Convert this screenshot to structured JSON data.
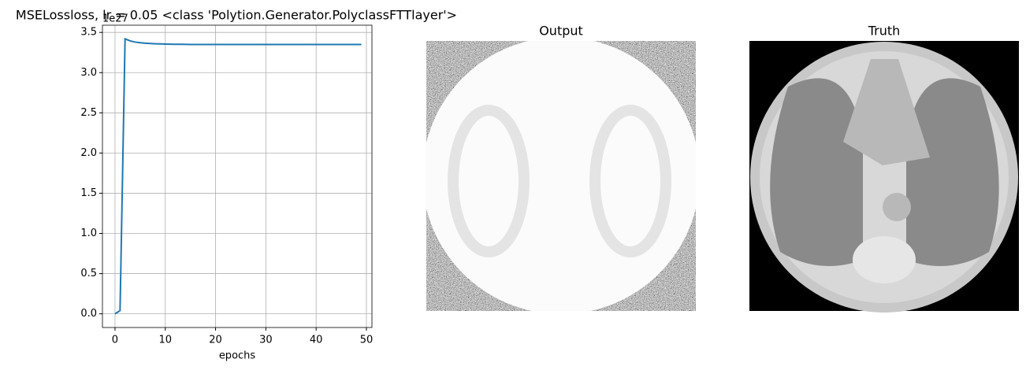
{
  "chart_data": {
    "type": "line",
    "title": "MSELossloss, lr = 0.05 <class 'Polytion.Generator.PolyclassFTTlayer'>",
    "offset_label": "1e27",
    "x_label": "epochs",
    "x": [
      0,
      1,
      2,
      3,
      4,
      5,
      6,
      7,
      8,
      9,
      10,
      11,
      12,
      13,
      14,
      15,
      16,
      17,
      18,
      19,
      20,
      21,
      22,
      23,
      24,
      25,
      26,
      27,
      28,
      29,
      30,
      31,
      32,
      33,
      34,
      35,
      36,
      37,
      38,
      39,
      40,
      41,
      42,
      43,
      44,
      45,
      46,
      47,
      48,
      49
    ],
    "values": [
      0,
      0.04,
      3.42,
      3.395,
      3.38,
      3.372,
      3.366,
      3.362,
      3.359,
      3.357,
      3.355,
      3.354,
      3.353,
      3.352,
      3.351,
      3.35,
      3.35,
      3.35,
      3.35,
      3.35,
      3.35,
      3.35,
      3.35,
      3.35,
      3.35,
      3.35,
      3.35,
      3.35,
      3.35,
      3.35,
      3.35,
      3.35,
      3.35,
      3.35,
      3.35,
      3.35,
      3.35,
      3.35,
      3.35,
      3.35,
      3.35,
      3.35,
      3.35,
      3.35,
      3.35,
      3.35,
      3.35,
      3.35,
      3.35,
      3.35
    ],
    "color": "#1f77b4",
    "xlim": [
      -2.5,
      51.1
    ],
    "xticks": [
      0,
      10,
      20,
      30,
      40,
      50
    ],
    "ylim": [
      -0.17,
      3.59
    ],
    "yticks": [
      {
        "value": 0,
        "label": "0.0"
      },
      0.5,
      {
        "value": 1,
        "label": "1.0"
      },
      1.5,
      {
        "value": 2,
        "label": "2.0"
      },
      2.5,
      {
        "value": 3,
        "label": "3.0"
      },
      3.5
    ],
    "grid": true
  },
  "images": [
    {
      "title": "Output"
    },
    {
      "title": "Truth"
    }
  ]
}
